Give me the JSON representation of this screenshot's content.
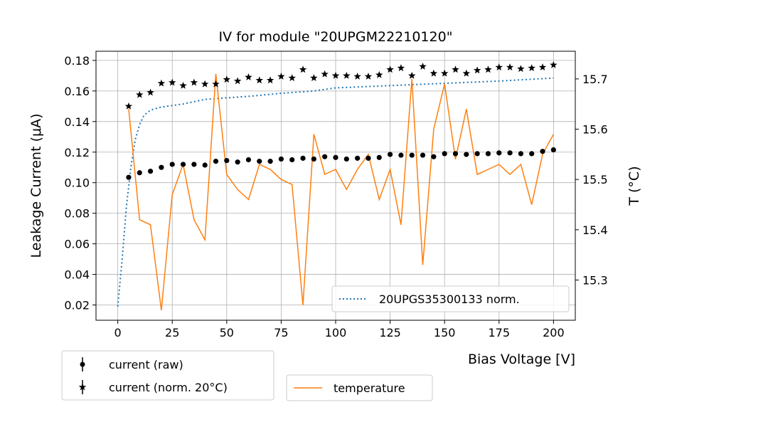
{
  "chart_data": {
    "type": "scatter",
    "title": "IV for module \"20UPGM22210120\"",
    "xlabel": "Bias Voltage [V]",
    "ylabel": "Leakage Current (μA)",
    "y2label": "T (°C)",
    "xlim": [
      -10,
      210
    ],
    "ylim": [
      0.01,
      0.186
    ],
    "y2lim": [
      15.22,
      15.755
    ],
    "x_ticks": [
      0,
      25,
      50,
      75,
      100,
      125,
      150,
      175,
      200
    ],
    "y_ticks": [
      0.02,
      0.04,
      0.06,
      0.08,
      0.1,
      0.12,
      0.14,
      0.16,
      0.18
    ],
    "y_tick_labels": [
      "0.02",
      "0.04",
      "0.06",
      "0.08",
      "0.10",
      "0.12",
      "0.14",
      "0.16",
      "0.18"
    ],
    "y2_ticks": [
      15.3,
      15.4,
      15.5,
      15.6,
      15.7
    ],
    "y2_tick_labels": [
      "15.3",
      "15.4",
      "15.5",
      "15.6",
      "15.7"
    ],
    "grid": true,
    "x": [
      5,
      10,
      15,
      20,
      25,
      30,
      35,
      40,
      45,
      50,
      55,
      60,
      65,
      70,
      75,
      80,
      85,
      90,
      95,
      100,
      105,
      110,
      115,
      120,
      125,
      130,
      135,
      140,
      145,
      150,
      155,
      160,
      165,
      170,
      175,
      180,
      185,
      190,
      195,
      200
    ],
    "series": [
      {
        "name": "current (raw)",
        "axis": "left",
        "marker": "circle",
        "color": "#000000",
        "values": [
          0.1035,
          0.1065,
          0.1075,
          0.11,
          0.112,
          0.112,
          0.112,
          0.1115,
          0.114,
          0.1145,
          0.1135,
          0.115,
          0.114,
          0.114,
          0.1155,
          0.115,
          0.116,
          0.1155,
          0.117,
          0.1165,
          0.1155,
          0.116,
          0.116,
          0.1165,
          0.1185,
          0.118,
          0.118,
          0.118,
          0.117,
          0.119,
          0.119,
          0.1185,
          0.119,
          0.119,
          0.1195,
          0.1195,
          0.119,
          0.119,
          0.1205,
          0.1215
        ]
      },
      {
        "name": "current (norm. 20°C)",
        "axis": "left",
        "marker": "star",
        "color": "#000000",
        "values": [
          0.15,
          0.1575,
          0.159,
          0.165,
          0.1655,
          0.1635,
          0.1655,
          0.1645,
          0.1645,
          0.1675,
          0.1665,
          0.169,
          0.167,
          0.167,
          0.1695,
          0.1685,
          0.174,
          0.1685,
          0.171,
          0.17,
          0.17,
          0.1695,
          0.1695,
          0.1705,
          0.174,
          0.175,
          0.17,
          0.176,
          0.1715,
          0.1715,
          0.174,
          0.1715,
          0.1735,
          0.174,
          0.1755,
          0.1755,
          0.1745,
          0.175,
          0.1755,
          0.177
        ]
      },
      {
        "name": "20UPGS35300133 norm.",
        "axis": "left",
        "style": "dotted",
        "color": "#1f77b4",
        "x": [
          0,
          2,
          4,
          6,
          8,
          10,
          12,
          15,
          20,
          25,
          30,
          40,
          50,
          60,
          75,
          90,
          100,
          125,
          150,
          175,
          200
        ],
        "values": [
          0.019,
          0.05,
          0.085,
          0.11,
          0.128,
          0.138,
          0.144,
          0.1475,
          0.1495,
          0.1505,
          0.1515,
          0.1545,
          0.1555,
          0.1565,
          0.1585,
          0.16,
          0.162,
          0.1635,
          0.165,
          0.1665,
          0.1685
        ]
      },
      {
        "name": "temperature",
        "axis": "right",
        "style": "solid",
        "color": "#ff7f0e",
        "values": [
          15.64,
          15.42,
          15.41,
          15.24,
          15.47,
          15.53,
          15.42,
          15.38,
          15.71,
          15.51,
          15.48,
          15.46,
          15.53,
          15.52,
          15.5,
          15.49,
          15.25,
          15.59,
          15.51,
          15.52,
          15.48,
          15.52,
          15.55,
          15.46,
          15.52,
          15.41,
          15.7,
          15.33,
          15.6,
          15.69,
          15.54,
          15.64,
          15.51,
          15.52,
          15.53,
          15.51,
          15.53,
          15.45,
          15.55,
          15.59
        ]
      }
    ],
    "legends": {
      "upper": {
        "position": "lower-right-inside",
        "entries": [
          "20UPGS35300133 norm."
        ]
      },
      "lower_left": {
        "position": "below-left",
        "entries": [
          "current (raw)",
          "current (norm. 20°C)"
        ]
      },
      "lower_mid": {
        "position": "below-center",
        "entries": [
          "temperature"
        ]
      }
    }
  }
}
